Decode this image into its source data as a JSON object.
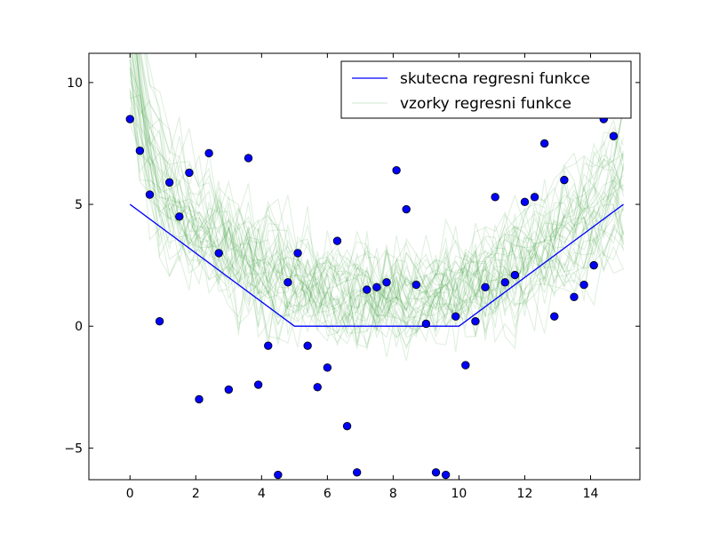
{
  "chart_data": {
    "type": "scatter",
    "title": "",
    "xlabel": "",
    "ylabel": "",
    "xlim": [
      -1.25,
      15.5
    ],
    "ylim": [
      -6.3,
      11.2
    ],
    "xticks": [
      0,
      2,
      4,
      6,
      8,
      10,
      12,
      14
    ],
    "yticks": [
      -5,
      0,
      5,
      10
    ],
    "grid": false,
    "legend_position": "top-right",
    "colors": {
      "true_function": "#0000ff",
      "samples": "#008000",
      "points_fill": "#0000ff",
      "points_edge": "#000000"
    },
    "true_function": {
      "name": "skutecna regresni funkce",
      "x": [
        0,
        5,
        10,
        15
      ],
      "y": [
        5,
        0,
        0,
        5
      ]
    },
    "samples": {
      "name": "vzorky regresni funkce"
    },
    "points": {
      "x": [
        0.0,
        0.3,
        0.6,
        0.9,
        1.2,
        1.5,
        1.8,
        2.1,
        2.4,
        2.7,
        3.0,
        3.6,
        3.9,
        4.2,
        4.5,
        4.8,
        5.1,
        5.4,
        5.7,
        6.0,
        6.3,
        6.6,
        6.9,
        7.2,
        7.5,
        7.8,
        8.1,
        8.4,
        8.7,
        9.0,
        9.3,
        9.6,
        9.9,
        10.2,
        10.5,
        10.8,
        11.1,
        11.4,
        11.7,
        12.0,
        12.3,
        12.6,
        12.9,
        13.2,
        13.5,
        13.8,
        14.1,
        14.4,
        14.7
      ],
      "y": [
        8.5,
        7.2,
        5.4,
        0.2,
        5.9,
        4.5,
        6.3,
        -3.0,
        7.1,
        3.0,
        -2.6,
        6.9,
        -2.4,
        -0.8,
        -6.1,
        1.8,
        3.0,
        -0.8,
        -2.5,
        -1.7,
        3.5,
        -4.1,
        -6.0,
        1.5,
        1.6,
        1.8,
        6.4,
        4.8,
        1.7,
        0.1,
        -6.0,
        -6.1,
        0.4,
        -1.6,
        0.2,
        1.6,
        5.3,
        1.8,
        2.1,
        5.1,
        5.3,
        7.5,
        0.4,
        6.0,
        1.2,
        1.7,
        2.5,
        8.5,
        7.8
      ]
    }
  }
}
